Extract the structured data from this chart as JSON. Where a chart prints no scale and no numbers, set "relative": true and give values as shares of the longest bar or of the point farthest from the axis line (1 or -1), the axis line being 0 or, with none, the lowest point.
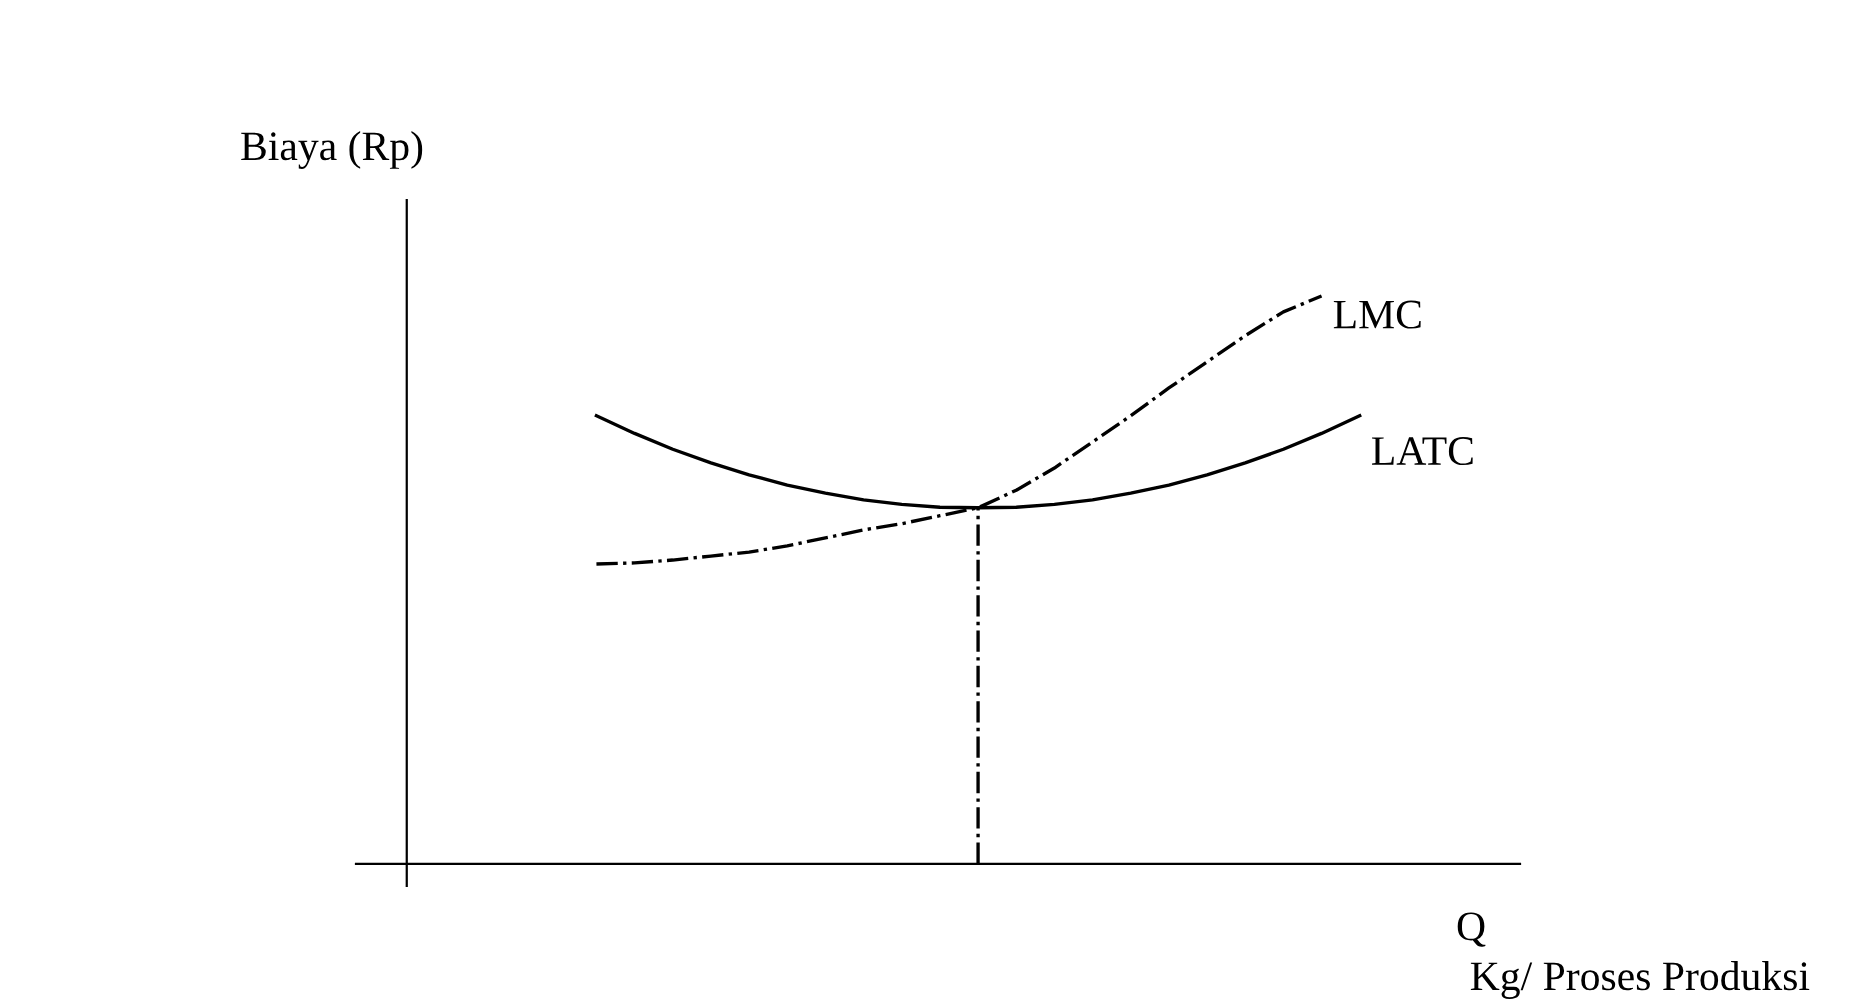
{
  "chart_data": {
    "type": "line",
    "relative": true,
    "ylabel": "Biaya (Rp)",
    "xlabel": "Q",
    "annotations": [
      "Kg/ Proses Produksi"
    ],
    "categories": [
      null,
      null,
      null,
      null,
      null,
      null,
      null,
      null,
      null,
      null,
      null,
      null,
      null,
      null,
      null,
      null,
      null,
      null,
      null,
      null,
      null
    ],
    "series": [
      {
        "name": "LMC",
        "color": "#000000",
        "line_style": "dashdot",
        "values": [
          0.528,
          0.53,
          0.535,
          0.542,
          0.549,
          0.56,
          0.574,
          0.588,
          0.599,
          0.613,
          0.627,
          0.658,
          0.697,
          0.743,
          0.789,
          0.838,
          0.884,
          0.93,
          0.972,
          1.0,
          null
        ]
      },
      {
        "name": "LATC",
        "color": "#000000",
        "line_style": "solid",
        "values": [
          0.789,
          0.758,
          0.73,
          0.706,
          0.685,
          0.667,
          0.653,
          0.641,
          0.633,
          0.628,
          0.627,
          0.628,
          0.633,
          0.641,
          0.653,
          0.667,
          0.685,
          0.706,
          0.73,
          0.758,
          0.789
        ]
      }
    ],
    "legend": false
  }
}
